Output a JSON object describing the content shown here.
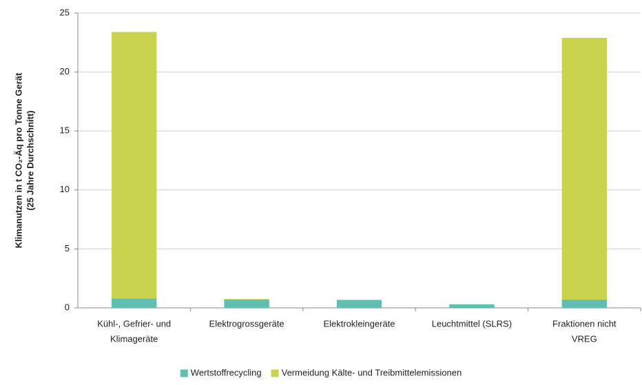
{
  "chart_data": {
    "type": "stacked_bar",
    "ylabel": [
      "Klimanutzen  in t CO₂-Äq pro Tonne Gerät",
      "(25 Jahre Durchschnitt)"
    ],
    "categories": [
      [
        "Kühl-, Gefrier- und",
        "Klimageräte"
      ],
      [
        "Elektrogrossgeräte"
      ],
      [
        "Elektrokleingeräte"
      ],
      [
        "Leuchtmittel (SLRS)"
      ],
      [
        "Fraktionen nicht",
        "VREG"
      ]
    ],
    "series": [
      {
        "name": "Wertstoffrecycling",
        "color": "#5fbfb2",
        "values": [
          0.8,
          0.7,
          0.65,
          0.3,
          0.7
        ]
      },
      {
        "name": "Vermeidung Kälte- und Treibmittelemissionen",
        "color": "#c9d34e",
        "values": [
          22.6,
          0.05,
          0.05,
          0,
          22.2
        ]
      }
    ],
    "ylim": [
      0,
      25
    ],
    "yticks": [
      0,
      5,
      10,
      15,
      20,
      25
    ],
    "grid": true,
    "legend": "bottom"
  }
}
